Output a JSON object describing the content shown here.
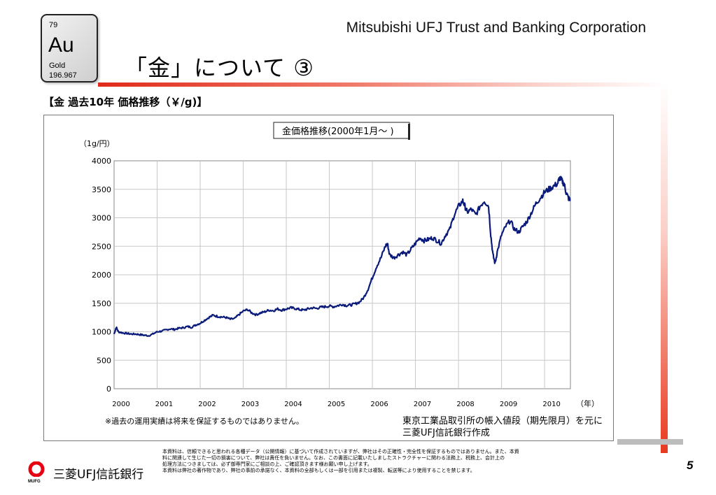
{
  "element": {
    "number": "79",
    "symbol": "Au",
    "name": "Gold",
    "mass": "196.967"
  },
  "header": {
    "company": "Mitsubishi UFJ Trust and Banking Corporation",
    "title": "「金」について ③"
  },
  "section_label": "【金 過去10年 価格推移（￥/g)】",
  "colors": {
    "accent": "#e02a1a",
    "line": "#0a1a7a"
  },
  "chart_data": {
    "type": "line",
    "title": "金価格推移(2000年1月～ )",
    "ylabel": "（1g/円）",
    "xlabel": "（年）",
    "ylim": [
      0,
      4000
    ],
    "xlim": [
      2000.0,
      2010.6
    ],
    "yticks": [
      "0",
      "500",
      "1000",
      "1500",
      "2000",
      "2500",
      "3000",
      "3500",
      "4000"
    ],
    "xticks": [
      "2000",
      "2001",
      "2002",
      "2003",
      "2004",
      "2005",
      "2006",
      "2007",
      "2008",
      "2009",
      "2010"
    ],
    "grid": true,
    "series": [
      {
        "x": [
          2000.0,
          2000.05,
          2000.1,
          2000.2,
          2000.3,
          2000.4,
          2000.5,
          2000.6,
          2000.7,
          2000.8,
          2000.9,
          2001.0,
          2001.1,
          2001.2,
          2001.3,
          2001.4,
          2001.5,
          2001.6,
          2001.7,
          2001.8,
          2001.9,
          2002.0,
          2002.1,
          2002.2,
          2002.3,
          2002.4,
          2002.5,
          2002.6,
          2002.7,
          2002.8,
          2002.9,
          2003.0,
          2003.1,
          2003.2,
          2003.3,
          2003.4,
          2003.5,
          2003.6,
          2003.7,
          2003.8,
          2003.9,
          2004.0,
          2004.1,
          2004.2,
          2004.3,
          2004.4,
          2004.5,
          2004.6,
          2004.7,
          2004.8,
          2004.9,
          2005.0,
          2005.1,
          2005.2,
          2005.3,
          2005.4,
          2005.5,
          2005.6,
          2005.7,
          2005.8,
          2005.9,
          2006.0,
          2006.1,
          2006.2,
          2006.3,
          2006.35,
          2006.4,
          2006.5,
          2006.6,
          2006.7,
          2006.8,
          2006.9,
          2007.0,
          2007.1,
          2007.2,
          2007.3,
          2007.4,
          2007.5,
          2007.6,
          2007.7,
          2007.8,
          2007.9,
          2008.0,
          2008.1,
          2008.15,
          2008.2,
          2008.3,
          2008.4,
          2008.5,
          2008.6,
          2008.7,
          2008.75,
          2008.8,
          2008.85,
          2008.9,
          2009.0,
          2009.1,
          2009.2,
          2009.3,
          2009.4,
          2009.5,
          2009.6,
          2009.7,
          2009.8,
          2009.9,
          2010.0,
          2010.1,
          2010.2,
          2010.3,
          2010.35,
          2010.4,
          2010.45,
          2010.5,
          2010.55,
          2010.6
        ],
        "y": [
          960,
          1080,
          1000,
          980,
          970,
          960,
          960,
          950,
          940,
          930,
          960,
          1000,
          1010,
          1030,
          1050,
          1040,
          1060,
          1070,
          1090,
          1080,
          1120,
          1150,
          1200,
          1250,
          1290,
          1270,
          1260,
          1250,
          1220,
          1230,
          1300,
          1360,
          1390,
          1330,
          1300,
          1330,
          1350,
          1380,
          1370,
          1400,
          1380,
          1400,
          1420,
          1410,
          1390,
          1380,
          1400,
          1420,
          1410,
          1430,
          1440,
          1450,
          1440,
          1460,
          1480,
          1460,
          1470,
          1490,
          1520,
          1600,
          1750,
          1950,
          2150,
          2300,
          2500,
          2550,
          2350,
          2300,
          2350,
          2400,
          2350,
          2450,
          2550,
          2650,
          2600,
          2620,
          2650,
          2600,
          2550,
          2700,
          2800,
          3050,
          3200,
          3300,
          3200,
          3100,
          3150,
          3050,
          3200,
          3300,
          3200,
          2700,
          2350,
          2200,
          2400,
          2700,
          2850,
          2950,
          2800,
          2750,
          2850,
          2950,
          3100,
          3250,
          3350,
          3450,
          3500,
          3550,
          3600,
          3700,
          3650,
          3600,
          3450,
          3350,
          3300
        ]
      }
    ]
  },
  "notes": {
    "left": "※過去の運用実績は将来を保証するものではありません。",
    "right_line1": "東京工業品取引所の帳入値段（期先限月）を元に",
    "right_line2": "三菱UFJ信託銀行作成"
  },
  "footer": {
    "bank_name": "三菱UFJ信託銀行",
    "logo_sub": "MUFG",
    "disclaimer_line1": "本資料は、信頼できると思われる各種データ（公開情報）に基づいて作成されていますが、弊社はその正確性・完全性を保証するものではありません。また、本資",
    "disclaimer_line2": "料に関連して生じた一切の損害について、弊社は責任を負いません。なお、この書面に記載いたしましたストラクチャーに関わる法務上、税務上、会計上の",
    "disclaimer_line3": "処理方法につきましては、必ず御専門家にご相談の上、ご確認頂きます様お願い申し上げます。",
    "disclaimer_line4": "本資料は弊社の著作物であり、弊社の事前の承諾なく、本資料の全部もしくは一部を引用または複製、転送等により使用することを禁じます。",
    "page_number": "5"
  }
}
